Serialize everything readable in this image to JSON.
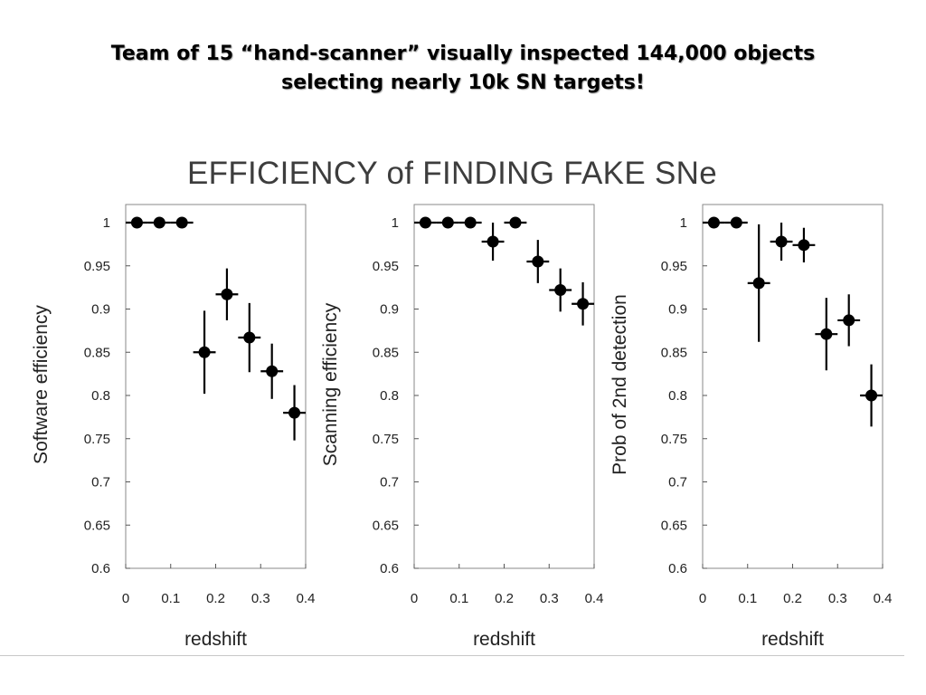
{
  "slide": {
    "title_line1": "Team of 15 “hand-scanner” visually inspected 144,000 objects",
    "title_line2": "selecting nearly 10k SN targets!"
  },
  "figure": {
    "title": "EFFICIENCY of FINDING FAKE SNe"
  },
  "chart_data": [
    {
      "type": "scatter",
      "title": "",
      "xlabel": "redshift",
      "ylabel": "Software efficiency",
      "xlim": [
        0,
        0.4
      ],
      "ylim": [
        0.6,
        1.0
      ],
      "xticks": [
        "0",
        "0.1",
        "0.2",
        "0.3",
        "0.4"
      ],
      "yticks": [
        "0.6",
        "0.65",
        "0.7",
        "0.75",
        "0.8",
        "0.85",
        "0.9",
        "0.95",
        "1"
      ],
      "grid": false,
      "series": [
        {
          "x": [
            0.025,
            0.075,
            0.125,
            0.175,
            0.225,
            0.275,
            0.325,
            0.375
          ],
          "y": [
            1.0,
            1.0,
            1.0,
            0.85,
            0.917,
            0.867,
            0.828,
            0.78
          ],
          "y_err": [
            0,
            0,
            0,
            0.048,
            0.03,
            0.04,
            0.032,
            0.032
          ],
          "x_err": [
            0.025,
            0.025,
            0.025,
            0.025,
            0.025,
            0.025,
            0.025,
            0.025
          ]
        }
      ]
    },
    {
      "type": "scatter",
      "title": "",
      "xlabel": "redshift",
      "ylabel": "Scanning efficiency",
      "xlim": [
        0,
        0.4
      ],
      "ylim": [
        0.6,
        1.0
      ],
      "xticks": [
        "0",
        "0.1",
        "0.2",
        "0.3",
        "0.4"
      ],
      "yticks": [
        "0.6",
        "0.65",
        "0.7",
        "0.75",
        "0.8",
        "0.85",
        "0.9",
        "0.95",
        "1"
      ],
      "grid": false,
      "series": [
        {
          "x": [
            0.025,
            0.075,
            0.125,
            0.175,
            0.225,
            0.275,
            0.325,
            0.375
          ],
          "y": [
            1.0,
            1.0,
            1.0,
            0.978,
            1.0,
            0.955,
            0.922,
            0.906
          ],
          "y_err": [
            0,
            0,
            0,
            0.022,
            0,
            0.025,
            0.025,
            0.025
          ],
          "x_err": [
            0.025,
            0.025,
            0.025,
            0.025,
            0.025,
            0.025,
            0.025,
            0.025
          ]
        }
      ]
    },
    {
      "type": "scatter",
      "title": "",
      "xlabel": "redshift",
      "ylabel": "Prob of 2nd detection",
      "xlim": [
        0,
        0.4
      ],
      "ylim": [
        0.6,
        1.0
      ],
      "xticks": [
        "0",
        "0.1",
        "0.2",
        "0.3",
        "0.4"
      ],
      "yticks": [
        "0.6",
        "0.65",
        "0.7",
        "0.75",
        "0.8",
        "0.85",
        "0.9",
        "0.95",
        "1"
      ],
      "grid": false,
      "series": [
        {
          "x": [
            0.025,
            0.075,
            0.125,
            0.175,
            0.225,
            0.275,
            0.325,
            0.375
          ],
          "y": [
            1.0,
            1.0,
            0.93,
            0.978,
            0.974,
            0.871,
            0.887,
            0.8
          ],
          "y_err": [
            0,
            0,
            0.068,
            0.022,
            0.02,
            0.042,
            0.03,
            0.036
          ],
          "x_err": [
            0.025,
            0.025,
            0.025,
            0.025,
            0.025,
            0.025,
            0.025,
            0.025
          ]
        }
      ]
    }
  ]
}
